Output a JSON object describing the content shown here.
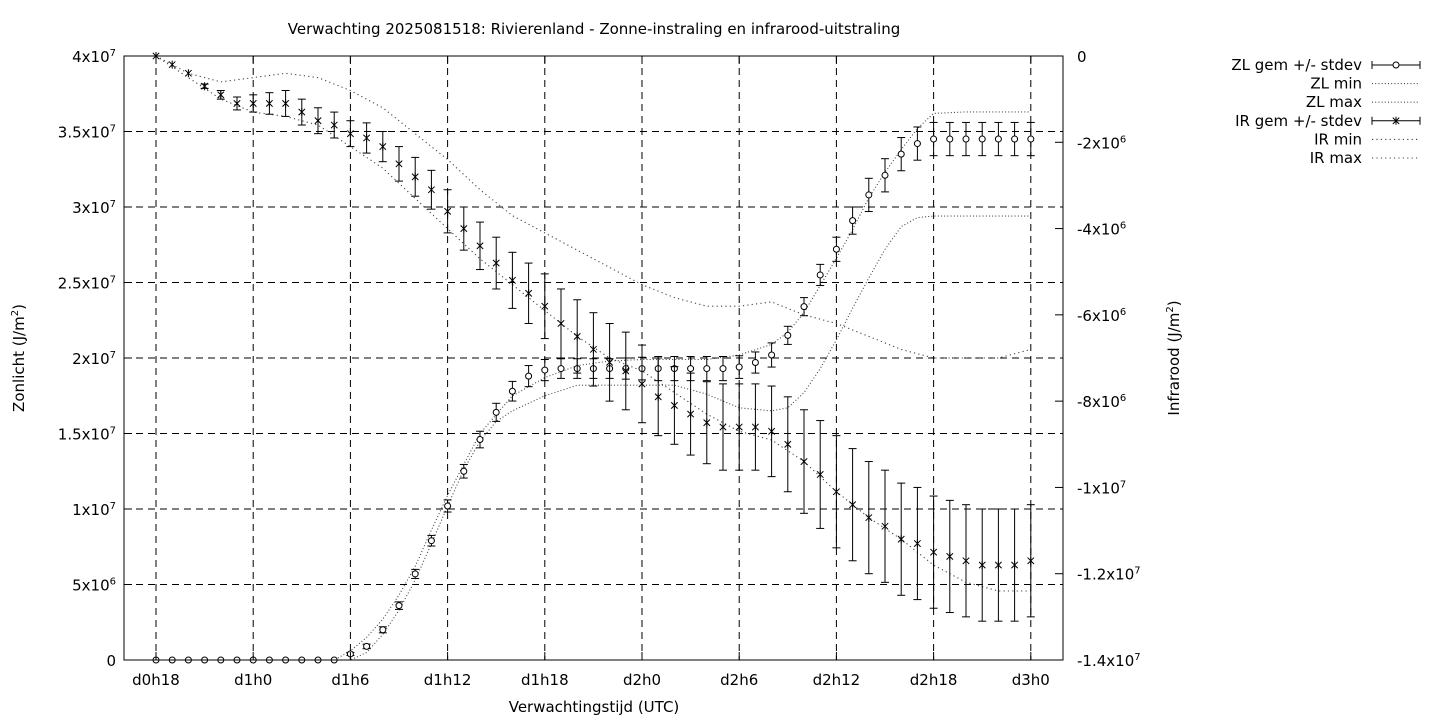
{
  "chart_data": {
    "type": "line",
    "title": "Verwachting 2025081518: Rivierenland - Zonne-instraling en infrarood-uitstraling",
    "xlabel": "Verwachtingstijd (UTC)",
    "ylabel": {
      "base": "Zonlicht (J/m",
      "sup": "2",
      "close": ")"
    },
    "y2label": {
      "base": "Infrarood (J/m",
      "sup": "2",
      "close": ")"
    },
    "x_unit": "hours since d0h18 forecast start",
    "xlim": [
      0,
      60
    ],
    "ylim": [
      0,
      40000000
    ],
    "y2lim": [
      -14000000,
      0
    ],
    "grid": true,
    "legend_position": "right, outside",
    "x_ticks": [
      {
        "x": 0,
        "label": "d0h18"
      },
      {
        "x": 6,
        "label": "d1h0"
      },
      {
        "x": 12,
        "label": "d1h6"
      },
      {
        "x": 18,
        "label": "d1h12"
      },
      {
        "x": 24,
        "label": "d1h18"
      },
      {
        "x": 30,
        "label": "d2h0"
      },
      {
        "x": 36,
        "label": "d2h6"
      },
      {
        "x": 42,
        "label": "d2h12"
      },
      {
        "x": 48,
        "label": "d2h18"
      },
      {
        "x": 54,
        "label": "d3h0"
      }
    ],
    "y_ticks": [
      {
        "v": 0,
        "base": "0",
        "exp": ""
      },
      {
        "v": 5000000,
        "base": "5x10",
        "exp": "6"
      },
      {
        "v": 10000000,
        "base": "1x10",
        "exp": "7"
      },
      {
        "v": 15000000,
        "base": "1.5x10",
        "exp": "7"
      },
      {
        "v": 20000000,
        "base": "2x10",
        "exp": "7"
      },
      {
        "v": 25000000,
        "base": "2.5x10",
        "exp": "7"
      },
      {
        "v": 30000000,
        "base": "3x10",
        "exp": "7"
      },
      {
        "v": 35000000,
        "base": "3.5x10",
        "exp": "7"
      },
      {
        "v": 40000000,
        "base": "4x10",
        "exp": "7"
      }
    ],
    "y2_ticks": [
      {
        "v": 0,
        "base": "0",
        "exp": ""
      },
      {
        "v": -2000000,
        "base": "-2x10",
        "exp": "6"
      },
      {
        "v": -4000000,
        "base": "-4x10",
        "exp": "6"
      },
      {
        "v": -6000000,
        "base": "-6x10",
        "exp": "6"
      },
      {
        "v": -8000000,
        "base": "-8x10",
        "exp": "6"
      },
      {
        "v": -10000000,
        "base": "-1x10",
        "exp": "7"
      },
      {
        "v": -12000000,
        "base": "-1.2x10",
        "exp": "7"
      },
      {
        "v": -14000000,
        "base": "-1.4x10",
        "exp": "7"
      }
    ],
    "series": [
      {
        "name": "ZL gem +/- stdev",
        "axis": "y1",
        "marker": "circle",
        "x": [
          0,
          1,
          2,
          3,
          4,
          5,
          6,
          7,
          8,
          9,
          10,
          11,
          12,
          13,
          14,
          15,
          16,
          17,
          18,
          19,
          20,
          21,
          22,
          23,
          24,
          25,
          26,
          27,
          28,
          29,
          30,
          31,
          32,
          33,
          34,
          35,
          36,
          37,
          38,
          39,
          40,
          41,
          42,
          43,
          44,
          45,
          46,
          47,
          48,
          49,
          50,
          51,
          52,
          53,
          54
        ],
        "values": [
          0,
          0,
          0,
          0,
          0,
          0,
          0,
          0,
          0,
          0,
          0,
          0,
          400000,
          900000,
          2000000,
          3600000,
          5700000,
          7900000,
          10200000,
          12500000,
          14600000,
          16400000,
          17800000,
          18800000,
          19200000,
          19300000,
          19300000,
          19300000,
          19300000,
          19300000,
          19300000,
          19300000,
          19300000,
          19300000,
          19300000,
          19300000,
          19400000,
          19700000,
          20200000,
          21500000,
          23400000,
          25500000,
          27200000,
          29100000,
          30800000,
          32100000,
          33500000,
          34200000,
          34500000,
          34500000,
          34500000,
          34500000,
          34500000,
          34500000,
          34500000
        ],
        "stdev": [
          0,
          0,
          0,
          0,
          0,
          0,
          0,
          0,
          0,
          0,
          0,
          0,
          100000,
          150000,
          200000,
          250000,
          300000,
          350000,
          400000,
          450000,
          550000,
          600000,
          650000,
          700000,
          700000,
          650000,
          650000,
          650000,
          650000,
          700000,
          750000,
          800000,
          800000,
          800000,
          800000,
          800000,
          750000,
          700000,
          800000,
          600000,
          600000,
          700000,
          800000,
          900000,
          1100000,
          1100000,
          1100000,
          1100000,
          1100000,
          1100000,
          1100000,
          1100000,
          1100000,
          1100000,
          1100000
        ]
      },
      {
        "name": "ZL min",
        "axis": "y1",
        "style": "dotted",
        "x": [
          0,
          2,
          4,
          6,
          8,
          10,
          12,
          13,
          14,
          15,
          16,
          17,
          18,
          19,
          20,
          21,
          22,
          23,
          24,
          26,
          28,
          30,
          32,
          34,
          36,
          38,
          39,
          40,
          41,
          42,
          43,
          44,
          45,
          46,
          47,
          48,
          50,
          52,
          54
        ],
        "values": [
          0,
          0,
          0,
          0,
          0,
          0,
          0,
          500000,
          1700000,
          3300000,
          5300000,
          7700000,
          10200000,
          12600000,
          14500000,
          15800000,
          16500000,
          17000000,
          17500000,
          18200000,
          18200000,
          18200000,
          18200000,
          17600000,
          16700000,
          16500000,
          16700000,
          17700000,
          19300000,
          21200000,
          23300000,
          25300000,
          27200000,
          28700000,
          29300000,
          29400000,
          29400000,
          29400000,
          29400000
        ]
      },
      {
        "name": "ZL max",
        "axis": "y1",
        "style": "dotted",
        "x": [
          0,
          1,
          2,
          3,
          4,
          5,
          6,
          7,
          8,
          9,
          10,
          11,
          12,
          13,
          14,
          15,
          16,
          17,
          18,
          20,
          22,
          24,
          26,
          28,
          30,
          32,
          34,
          36,
          38,
          39,
          40,
          41,
          42,
          43,
          44,
          45,
          46,
          47,
          48,
          50,
          52,
          54
        ],
        "values": [
          0,
          0,
          0,
          0,
          0,
          0,
          0,
          0,
          0,
          0,
          0,
          0,
          600000,
          1500000,
          2700000,
          4300000,
          6200000,
          8600000,
          10900000,
          15000000,
          17500000,
          18700000,
          19500000,
          19800000,
          19900000,
          19900000,
          19900000,
          20200000,
          20900000,
          21700000,
          23000000,
          24800000,
          26600000,
          28500000,
          30600000,
          32300000,
          33800000,
          35200000,
          36200000,
          36300000,
          36300000,
          36300000
        ]
      },
      {
        "name": "IR gem +/- stdev",
        "axis": "y2",
        "marker": "star",
        "x": [
          0,
          1,
          2,
          3,
          4,
          5,
          6,
          7,
          8,
          9,
          10,
          11,
          12,
          13,
          14,
          15,
          16,
          17,
          18,
          19,
          20,
          21,
          22,
          23,
          24,
          25,
          26,
          27,
          28,
          29,
          30,
          31,
          32,
          33,
          34,
          35,
          36,
          37,
          38,
          39,
          40,
          41,
          42,
          43,
          44,
          45,
          46,
          47,
          48,
          49,
          50,
          51,
          52,
          53,
          54
        ],
        "values": [
          0,
          -200000,
          -400000,
          -700000,
          -900000,
          -1100000,
          -1100000,
          -1100000,
          -1100000,
          -1300000,
          -1500000,
          -1600000,
          -1800000,
          -1900000,
          -2100000,
          -2500000,
          -2800000,
          -3100000,
          -3600000,
          -4000000,
          -4400000,
          -4800000,
          -5200000,
          -5500000,
          -5800000,
          -6200000,
          -6500000,
          -6800000,
          -7100000,
          -7300000,
          -7600000,
          -7900000,
          -8100000,
          -8300000,
          -8500000,
          -8600000,
          -8600000,
          -8600000,
          -8700000,
          -9000000,
          -9400000,
          -9700000,
          -10100000,
          -10400000,
          -10700000,
          -10900000,
          -11200000,
          -11300000,
          -11500000,
          -11600000,
          -11700000,
          -11800000,
          -11800000,
          -11800000,
          -11700000
        ],
        "stdev": [
          0,
          0,
          0,
          50000,
          100000,
          150000,
          200000,
          250000,
          300000,
          300000,
          300000,
          300000,
          300000,
          350000,
          350000,
          400000,
          450000,
          450000,
          500000,
          500000,
          550000,
          600000,
          650000,
          700000,
          750000,
          800000,
          850000,
          850000,
          900000,
          900000,
          900000,
          900000,
          900000,
          950000,
          950000,
          1000000,
          1000000,
          1000000,
          1050000,
          1100000,
          1200000,
          1250000,
          1300000,
          1300000,
          1300000,
          1300000,
          1300000,
          1300000,
          1300000,
          1300000,
          1300000,
          1300000,
          1300000,
          1300000,
          1300000
        ]
      },
      {
        "name": "IR min",
        "axis": "y2",
        "style": "dotted",
        "x": [
          0,
          2,
          4,
          6,
          8,
          10,
          12,
          14,
          16,
          18,
          20,
          22,
          24,
          26,
          28,
          30,
          32,
          34,
          36,
          38,
          40,
          42,
          44,
          46,
          48,
          50,
          52,
          54
        ],
        "values": [
          0,
          -500000,
          -1000000,
          -1300000,
          -1400000,
          -1600000,
          -2100000,
          -2600000,
          -3300000,
          -4000000,
          -4700000,
          -5300000,
          -5900000,
          -6500000,
          -7000000,
          -7300000,
          -7800000,
          -8300000,
          -8700000,
          -8900000,
          -9400000,
          -10100000,
          -10700000,
          -11200000,
          -11800000,
          -12200000,
          -12400000,
          -12400000
        ]
      },
      {
        "name": "IR max",
        "axis": "y2",
        "style": "dotted",
        "x": [
          0,
          2,
          4,
          6,
          8,
          10,
          12,
          14,
          16,
          18,
          20,
          22,
          24,
          26,
          28,
          30,
          32,
          34,
          36,
          38,
          40,
          42,
          44,
          46,
          48,
          50,
          52,
          54
        ],
        "values": [
          0,
          -400000,
          -600000,
          -500000,
          -400000,
          -500000,
          -800000,
          -1200000,
          -1800000,
          -2400000,
          -3100000,
          -3700000,
          -4100000,
          -4500000,
          -4900000,
          -5300000,
          -5600000,
          -5800000,
          -5800000,
          -5700000,
          -6000000,
          -6200000,
          -6500000,
          -6800000,
          -7000000,
          -7000000,
          -7000000,
          -6800000
        ]
      }
    ]
  }
}
